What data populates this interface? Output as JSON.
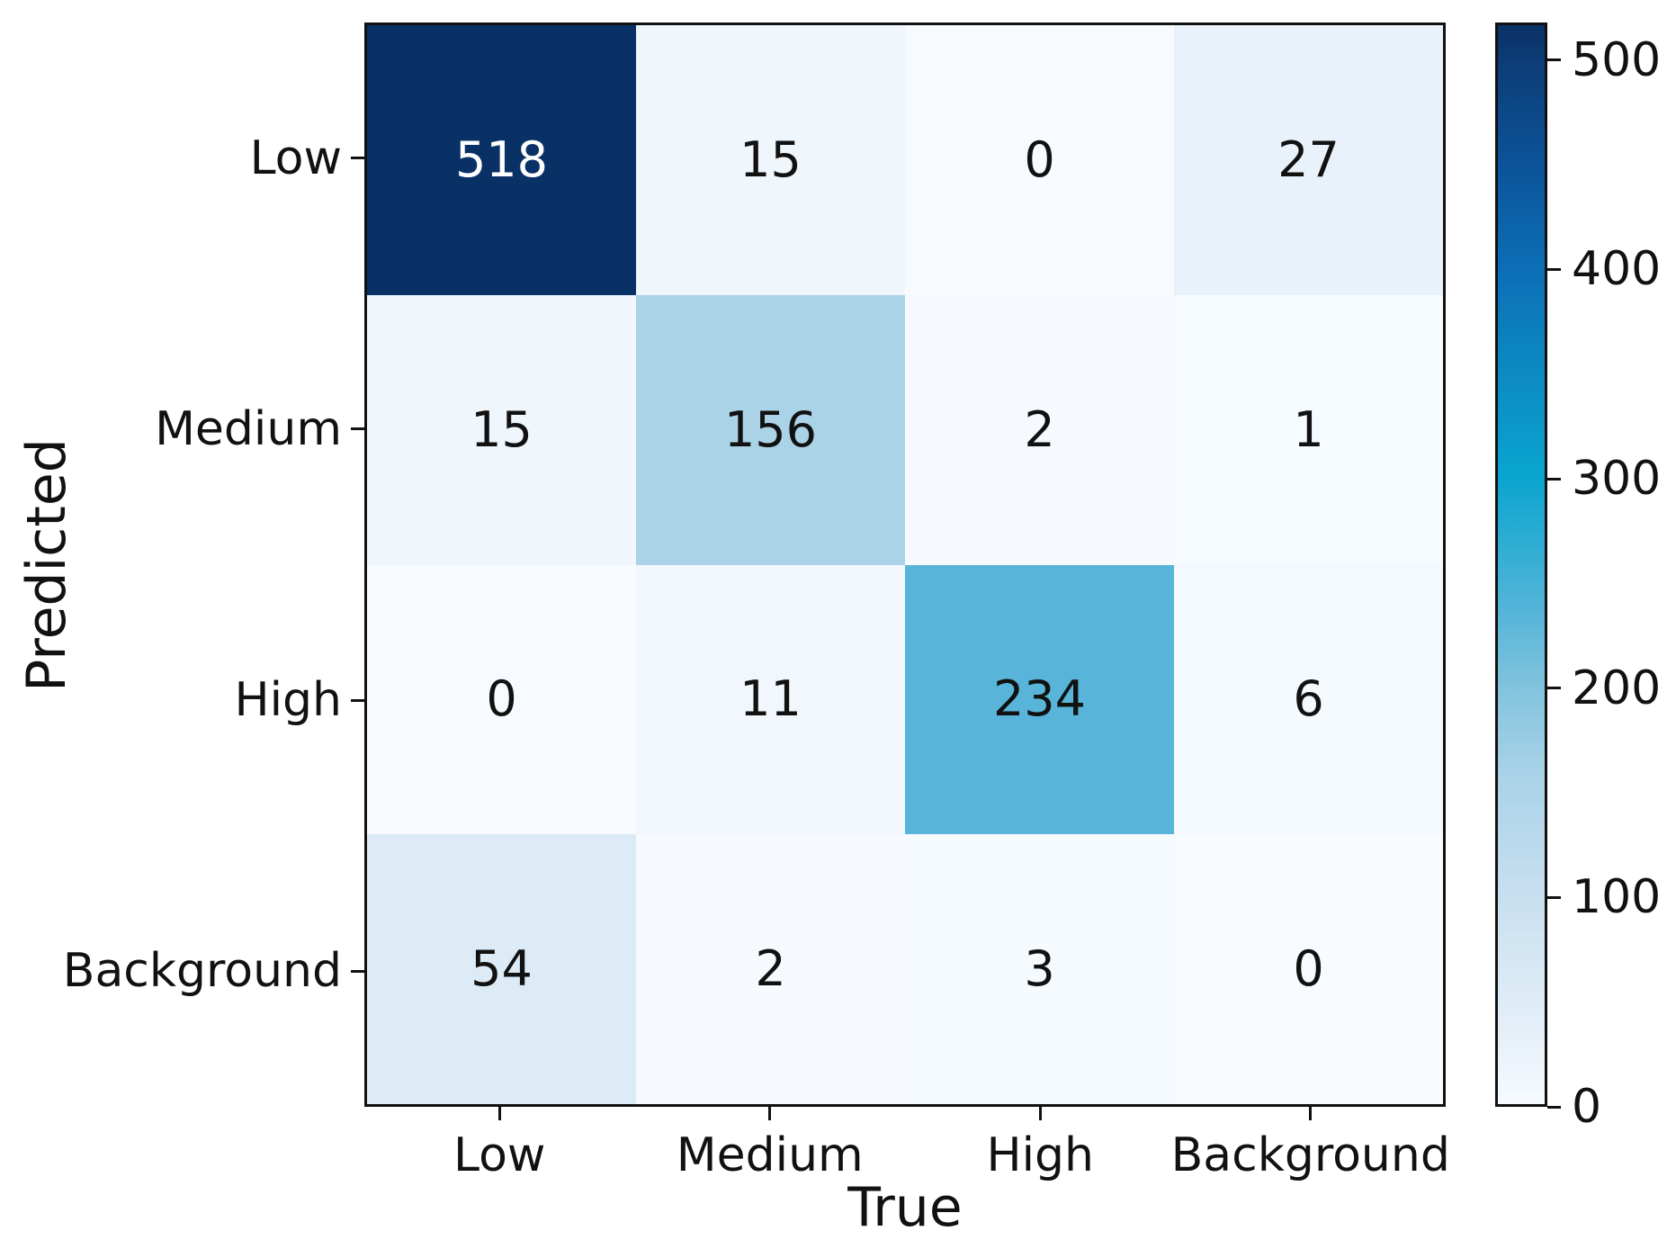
{
  "figure": {
    "background": "#ffffff",
    "axis_color": "#111111"
  },
  "chart_data": {
    "type": "heatmap",
    "title": "",
    "xlabel": "True",
    "ylabel": "Predicted",
    "x_categories": [
      "Low",
      "Medium",
      "High",
      "Background"
    ],
    "y_categories": [
      "Low",
      "Medium",
      "High",
      "Background"
    ],
    "matrix": [
      [
        518,
        15,
        0,
        27
      ],
      [
        15,
        156,
        2,
        1
      ],
      [
        0,
        11,
        234,
        6
      ],
      [
        54,
        2,
        3,
        0
      ]
    ],
    "vmin": 0,
    "vmax": 518,
    "colorbar_ticks": [
      0,
      100,
      200,
      300,
      400,
      500
    ],
    "colormap_stops": [
      [
        0.0,
        "#f7fbff"
      ],
      [
        0.06,
        "#e7f0f9"
      ],
      [
        0.104,
        "#dcebf5"
      ],
      [
        0.2,
        "#c6def0"
      ],
      [
        0.301,
        "#abd3e8"
      ],
      [
        0.38,
        "#85c5de"
      ],
      [
        0.452,
        "#58b5d9"
      ],
      [
        0.58,
        "#0aa5cf"
      ],
      [
        0.7,
        "#0c84bf"
      ],
      [
        0.772,
        "#0c6fb6"
      ],
      [
        0.88,
        "#0b5196"
      ],
      [
        0.965,
        "#0d3d77"
      ],
      [
        1.0,
        "#0a3166"
      ]
    ],
    "text_threshold": 259,
    "text_color_light": "#ffffff",
    "text_color_dark": "#111111",
    "grid": false,
    "legend_position": "right-colorbar"
  }
}
